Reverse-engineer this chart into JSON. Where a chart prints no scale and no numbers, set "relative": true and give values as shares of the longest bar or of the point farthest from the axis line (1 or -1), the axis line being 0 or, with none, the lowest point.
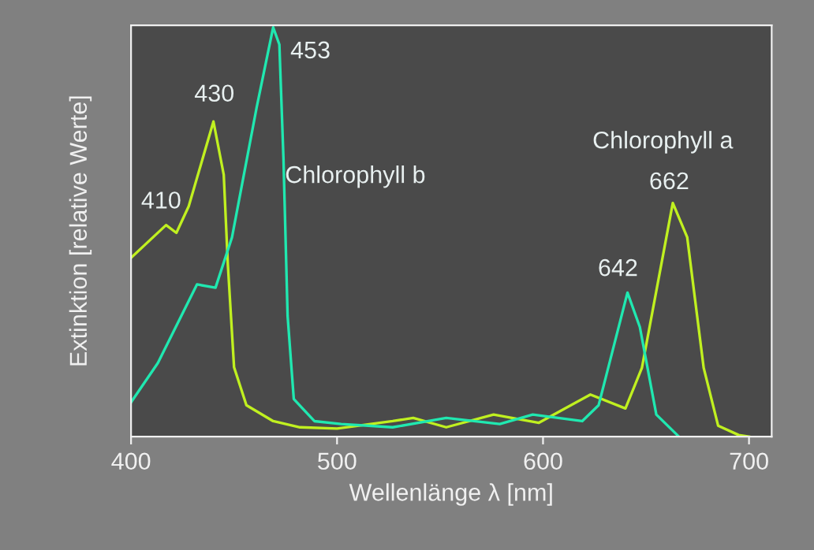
{
  "chart_data": {
    "type": "line",
    "relative": true,
    "xlabel": "Wellenlänge λ [nm]",
    "ylabel": "Extinktion [relative Werte]",
    "xlim": [
      400,
      711
    ],
    "xticks": [
      400,
      500,
      600,
      700
    ],
    "grid": false,
    "legend": false,
    "tick_labels": "x",
    "series": [
      {
        "color": "#c0f020",
        "x": [
          400,
          417,
          422,
          428,
          440,
          445,
          447,
          450,
          456,
          469,
          482,
          500,
          527,
          537,
          553,
          576,
          598,
          623,
          640,
          648,
          663,
          670,
          678,
          685,
          695,
          700
        ],
        "values": [
          0.437,
          0.517,
          0.498,
          0.563,
          0.77,
          0.64,
          0.42,
          0.17,
          0.077,
          0.038,
          0.023,
          0.02,
          0.038,
          0.046,
          0.023,
          0.054,
          0.034,
          0.103,
          0.069,
          0.168,
          0.571,
          0.487,
          0.168,
          0.027,
          0.004,
          0.0
        ]
      },
      {
        "color": "#20e8b0",
        "x": [
          400,
          413,
          432,
          441,
          449,
          461,
          469,
          472,
          474,
          476,
          479,
          489,
          502,
          527,
          553,
          579,
          595,
          619,
          627,
          641,
          647,
          655,
          666
        ],
        "values": [
          0.084,
          0.18,
          0.372,
          0.364,
          0.487,
          0.805,
          1,
          0.958,
          0.678,
          0.295,
          0.092,
          0.038,
          0.031,
          0.023,
          0.046,
          0.031,
          0.054,
          0.038,
          0.077,
          0.352,
          0.268,
          0.054,
          0.0
        ]
      }
    ],
    "annotations": [
      "410",
      "430",
      "453",
      "Chlorophyll b",
      "Chlorophyll a",
      "642",
      "662"
    ]
  }
}
